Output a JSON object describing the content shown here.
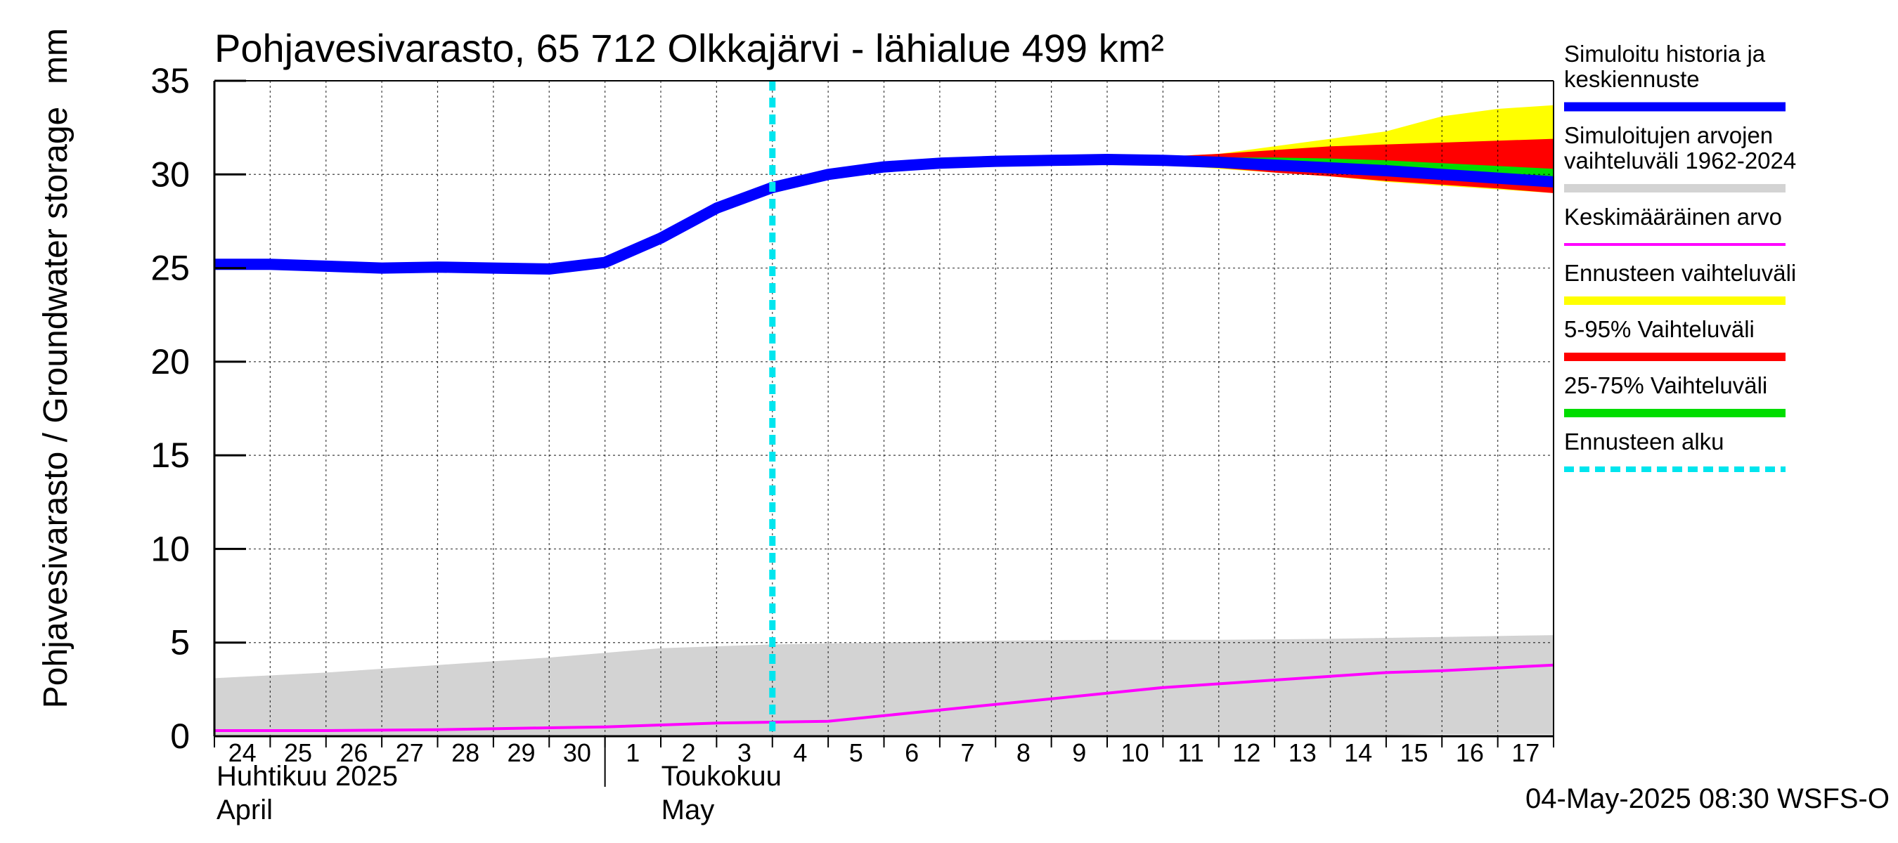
{
  "chart_data": {
    "type": "area",
    "title": "Pohjavesivarasto, 65 712 Olkkajärvi - lähialue 499 km²",
    "ylabel": "Pohjavesivarasto / Groundwater storage",
    "yunit": "mm",
    "ylim": [
      0,
      35
    ],
    "yticks": [
      0,
      5,
      10,
      15,
      20,
      25,
      30,
      35
    ],
    "grid": true,
    "xlim": [
      0,
      24
    ],
    "day_labels": [
      "24",
      "25",
      "26",
      "27",
      "28",
      "29",
      "30",
      "1",
      "2",
      "3",
      "4",
      "5",
      "6",
      "7",
      "8",
      "9",
      "10",
      "11",
      "12",
      "13",
      "14",
      "15",
      "16",
      "17"
    ],
    "month_labels": [
      {
        "fi": "Huhtikuu  2025",
        "en": "April"
      },
      {
        "fi": "Toukokuu",
        "en": "May"
      }
    ],
    "month_boundary_day": 7,
    "forecast_start_day": 10,
    "footer": "04-May-2025 08:30 WSFS-O",
    "legend_position": "right",
    "legend": [
      {
        "label_lines": [
          "Simuloitu historia ja",
          "keskiennuste"
        ],
        "color": "#0000ff",
        "style": "thick"
      },
      {
        "label_lines": [
          "Simuloitujen arvojen",
          "vaihteluväli 1962-2024"
        ],
        "color": "#d3d3d3",
        "style": "band"
      },
      {
        "label_lines": [
          "Keskimääräinen arvo"
        ],
        "color": "#ff00ff",
        "style": "line"
      },
      {
        "label_lines": [
          "Ennusteen vaihteluväli"
        ],
        "color": "#ffff00",
        "style": "band"
      },
      {
        "label_lines": [
          "5-95% Vaihteluväli"
        ],
        "color": "#ff0000",
        "style": "band"
      },
      {
        "label_lines": [
          "25-75% Vaihteluväli"
        ],
        "color": "#00dd00",
        "style": "band"
      },
      {
        "label_lines": [
          "Ennusteen alku"
        ],
        "color": "#00e5ee",
        "style": "dashed"
      }
    ],
    "series": [
      {
        "name": "Simuloitu historia ja keskiennuste",
        "color": "#0000ff",
        "x": [
          0,
          1,
          2,
          3,
          4,
          5,
          6,
          7,
          8,
          9,
          10,
          11,
          12,
          13,
          14,
          15,
          16,
          17,
          18,
          19,
          20,
          21,
          22,
          23,
          24
        ],
        "y": [
          25.2,
          25.2,
          25.1,
          25.0,
          25.05,
          25.0,
          24.95,
          25.3,
          26.6,
          28.2,
          29.3,
          30.0,
          30.4,
          30.6,
          30.7,
          30.75,
          30.8,
          30.75,
          30.65,
          30.5,
          30.35,
          30.2,
          30.0,
          29.8,
          29.6
        ]
      },
      {
        "name": "Keskimääräinen arvo",
        "color": "#ff00ff",
        "x": [
          0,
          2,
          4,
          6,
          7,
          9,
          11,
          13,
          15,
          16,
          17,
          18,
          19,
          20,
          21,
          22,
          23,
          24
        ],
        "y": [
          0.3,
          0.3,
          0.35,
          0.45,
          0.5,
          0.7,
          0.8,
          1.4,
          2.0,
          2.3,
          2.6,
          2.8,
          3.0,
          3.2,
          3.4,
          3.5,
          3.65,
          3.8
        ]
      }
    ],
    "bands": [
      {
        "name": "Simuloitujen arvojen vaihteluväli 1962-2024",
        "color": "#d3d3d3",
        "x": [
          0,
          2,
          4,
          6,
          8,
          10,
          12,
          14,
          16,
          18,
          20,
          22,
          24
        ],
        "low": [
          0,
          0,
          0,
          0,
          0,
          0,
          0,
          0,
          0,
          0,
          0,
          0.1,
          0.1
        ],
        "high": [
          3.1,
          3.4,
          3.8,
          4.2,
          4.7,
          4.9,
          5.0,
          5.1,
          5.15,
          5.15,
          5.2,
          5.3,
          5.4
        ]
      },
      {
        "name": "Ennusteen vaihteluväli",
        "color": "#ffff00",
        "x": [
          16,
          17,
          18,
          19,
          20,
          21,
          22,
          23,
          24
        ],
        "low": [
          30.8,
          30.55,
          30.3,
          30.1,
          29.9,
          29.6,
          29.4,
          29.2,
          29.0
        ],
        "high": [
          30.8,
          30.95,
          31.1,
          31.5,
          31.9,
          32.3,
          33.1,
          33.5,
          33.7
        ]
      },
      {
        "name": "5-95% Vaihteluväli",
        "color": "#ff0000",
        "x": [
          16,
          17,
          18,
          19,
          20,
          21,
          22,
          23,
          24
        ],
        "low": [
          30.8,
          30.6,
          30.35,
          30.1,
          29.9,
          29.65,
          29.45,
          29.25,
          29.0
        ],
        "high": [
          30.8,
          30.95,
          31.1,
          31.3,
          31.5,
          31.6,
          31.7,
          31.8,
          31.9
        ]
      },
      {
        "name": "25-75% Vaihteluväli",
        "color": "#00dd00",
        "x": [
          16,
          17,
          18,
          19,
          20,
          21,
          22,
          23,
          24
        ],
        "low": [
          30.8,
          30.7,
          30.6,
          30.45,
          30.3,
          30.1,
          29.95,
          29.8,
          29.7
        ],
        "high": [
          30.8,
          30.85,
          30.9,
          30.9,
          30.85,
          30.75,
          30.6,
          30.45,
          30.3
        ]
      }
    ]
  }
}
